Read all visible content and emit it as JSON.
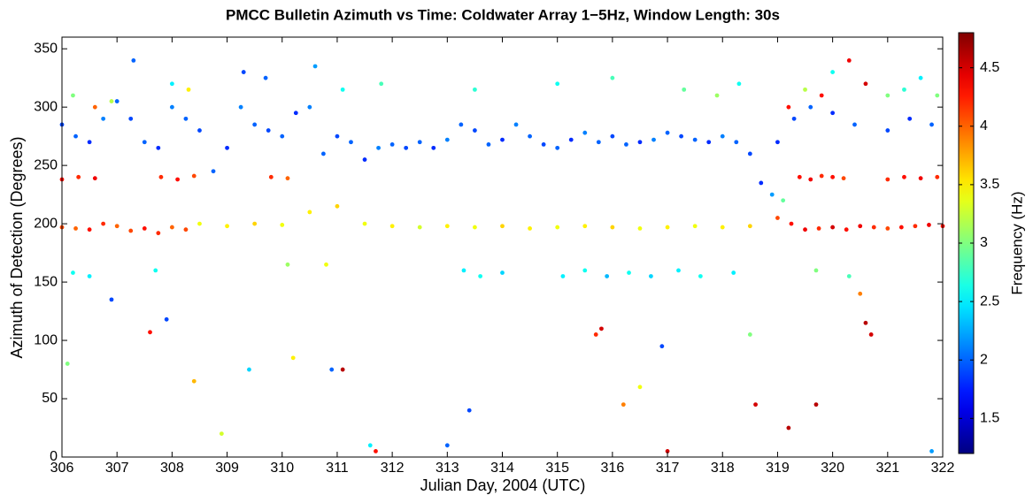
{
  "chart_data": {
    "type": "scatter",
    "title": "PMCC Bulletin Azimuth vs Time: Coldwater Array 1−5Hz, Window Length: 30s",
    "x_label": "Julian Day, 2004 (UTC)",
    "y_label": "Azimuth of Detection (Degrees)",
    "colorbar_label": "Frequency (Hz)",
    "colormap": "jet",
    "xlim": [
      306,
      322
    ],
    "xticks": [
      306,
      307,
      308,
      309,
      310,
      311,
      312,
      313,
      314,
      315,
      316,
      317,
      318,
      319,
      320,
      321,
      322
    ],
    "ylim": [
      0,
      360
    ],
    "yticks": [
      0,
      50,
      100,
      150,
      200,
      250,
      300,
      350
    ],
    "clim": [
      1.2,
      4.8
    ],
    "cticks": [
      1.5,
      2,
      2.5,
      3,
      3.5,
      4,
      4.5
    ],
    "x": [
      306,
      306.25,
      306.5,
      306.75,
      307,
      307.25,
      307.5,
      307.75,
      308,
      308.25,
      308.5,
      308.75,
      309,
      309.25,
      309.5,
      309.75,
      310,
      310.25,
      310.5,
      310.75,
      311,
      311.25,
      311.5,
      311.75,
      312,
      312.25,
      312.5,
      312.75,
      313,
      313.25,
      313.5,
      313.75,
      314,
      314.25,
      314.5,
      314.75,
      315,
      315.25,
      315.5,
      315.75,
      316,
      316.25,
      316.5,
      316.75,
      317,
      317.25,
      317.5,
      317.75,
      318,
      318.25,
      318.5,
      308.5,
      309,
      309.5,
      310,
      310.5,
      311,
      311.5,
      312,
      312.5,
      313,
      313.5,
      314,
      314.5,
      315,
      315.5,
      316,
      316.5,
      317,
      317.5,
      318,
      318.5,
      306,
      306.25,
      306.5,
      306.75,
      307,
      307.25,
      307.5,
      307.75,
      308,
      308.25,
      319,
      319.25,
      319.5,
      319.75,
      320,
      320.25,
      320.5,
      320.75,
      321,
      321.25,
      321.5,
      321.75,
      322,
      306,
      306.3,
      306.6,
      307.8,
      308.1,
      308.4,
      309.8,
      310.1,
      319.4,
      319.6,
      319.8,
      320,
      320.2,
      321,
      321.3,
      321.6,
      321.9,
      306.2,
      306.6,
      306.9,
      307.3,
      308,
      308.3,
      309.3,
      309.7,
      310.6,
      311.1,
      311.8,
      313.5,
      315,
      316,
      317.3,
      317.9,
      318.3,
      319.2,
      319.5,
      319.8,
      320,
      320.3,
      320.6,
      321,
      321.3,
      321.6,
      321.9,
      319,
      319.3,
      319.6,
      320,
      320.4,
      321,
      321.4,
      321.8,
      318.7,
      318.9,
      319.1,
      306.2,
      306.5,
      307.7,
      313.3,
      313.6,
      314,
      315.1,
      315.5,
      315.9,
      316.3,
      316.7,
      317.2,
      317.6,
      318.2,
      319.7,
      320.3,
      306.1,
      306.9,
      307.6,
      307.9,
      308.4,
      308.9,
      309.4,
      310.2,
      310.9,
      311.1,
      311.6,
      311.7,
      313,
      313.4,
      315.7,
      315.8,
      316.2,
      316.5,
      316.9,
      317,
      318.5,
      318.6,
      319.2,
      319.7,
      320.6,
      320.7,
      320.5,
      321.8,
      310.1,
      310.8
    ],
    "values": [
      285,
      275,
      270,
      290,
      305,
      290,
      270,
      265,
      300,
      290,
      280,
      245,
      265,
      300,
      285,
      280,
      275,
      295,
      300,
      260,
      275,
      270,
      255,
      265,
      268,
      265,
      270,
      265,
      272,
      285,
      280,
      268,
      272,
      285,
      275,
      268,
      265,
      272,
      278,
      270,
      275,
      268,
      270,
      272,
      278,
      275,
      272,
      270,
      275,
      270,
      260,
      200,
      198,
      200,
      199,
      210,
      215,
      200,
      198,
      197,
      198,
      197,
      198,
      196,
      197,
      198,
      197,
      196,
      197,
      198,
      197,
      198,
      197,
      196,
      195,
      200,
      198,
      194,
      196,
      192,
      197,
      195,
      205,
      200,
      195,
      196,
      197,
      195,
      198,
      197,
      196,
      197,
      198,
      199,
      198,
      238,
      240,
      239,
      240,
      238,
      241,
      240,
      239,
      240,
      238,
      241,
      240,
      239,
      238,
      240,
      239,
      240,
      310,
      300,
      305,
      340,
      320,
      315,
      330,
      325,
      335,
      315,
      320,
      315,
      320,
      325,
      315,
      310,
      320,
      300,
      315,
      310,
      330,
      340,
      320,
      310,
      315,
      325,
      310,
      270,
      290,
      300,
      295,
      285,
      280,
      290,
      285,
      235,
      225,
      220,
      158,
      155,
      160,
      160,
      155,
      158,
      155,
      160,
      155,
      158,
      155,
      160,
      155,
      158,
      160,
      155,
      80,
      135,
      107,
      118,
      65,
      20,
      75,
      85,
      75,
      75,
      10,
      5,
      10,
      40,
      105,
      110,
      45,
      60,
      95,
      5,
      105,
      45,
      25,
      45,
      115,
      105,
      140,
      5,
      165,
      165
    ],
    "color_values": [
      1.9,
      2.0,
      1.8,
      2.1,
      2.0,
      1.9,
      2.0,
      1.8,
      2.1,
      2.0,
      1.9,
      2.0,
      1.8,
      2.1,
      2.0,
      1.9,
      2.0,
      1.8,
      2.1,
      2.0,
      1.9,
      2.0,
      1.8,
      2.1,
      2.0,
      1.9,
      2.0,
      1.8,
      2.1,
      2.0,
      1.9,
      2.0,
      1.8,
      2.1,
      2.0,
      1.9,
      2.0,
      1.8,
      2.1,
      2.0,
      1.9,
      2.0,
      1.8,
      2.1,
      2.0,
      1.9,
      2.0,
      1.8,
      2.1,
      2.0,
      1.9,
      3.4,
      3.5,
      3.6,
      3.4,
      3.5,
      3.6,
      3.4,
      3.5,
      3.3,
      3.5,
      3.4,
      3.6,
      3.5,
      3.4,
      3.5,
      3.6,
      3.4,
      3.5,
      3.4,
      3.5,
      3.6,
      4.1,
      4.0,
      4.3,
      4.2,
      4.0,
      4.1,
      4.3,
      4.2,
      4.0,
      4.1,
      4.1,
      4.3,
      4.4,
      4.2,
      4.5,
      4.3,
      4.4,
      4.2,
      4.1,
      4.3,
      4.2,
      4.4,
      4.3,
      4.3,
      4.2,
      4.4,
      4.2,
      4.3,
      4.1,
      4.2,
      4.0,
      4.3,
      4.4,
      4.2,
      4.3,
      4.1,
      4.2,
      4.3,
      4.4,
      4.2,
      3.0,
      4.0,
      3.2,
      2.0,
      2.5,
      3.5,
      1.9,
      2.0,
      2.2,
      2.6,
      2.8,
      2.7,
      2.6,
      2.8,
      2.9,
      3.1,
      2.6,
      4.3,
      3.2,
      4.3,
      2.6,
      4.4,
      4.5,
      3.0,
      2.7,
      2.5,
      3.0,
      1.8,
      1.9,
      2.0,
      1.8,
      2.0,
      1.9,
      1.8,
      2.0,
      1.8,
      2.2,
      2.9,
      2.6,
      2.5,
      2.6,
      2.5,
      2.6,
      2.4,
      2.5,
      2.6,
      2.3,
      2.6,
      2.4,
      2.5,
      2.6,
      2.5,
      3.0,
      2.8,
      3.0,
      1.9,
      4.3,
      1.9,
      3.7,
      3.3,
      2.4,
      3.5,
      2.0,
      4.6,
      2.5,
      4.3,
      2.0,
      1.9,
      4.2,
      4.5,
      3.9,
      3.4,
      1.9,
      4.5,
      3.0,
      4.5,
      4.6,
      4.6,
      4.6,
      4.5,
      3.9,
      2.2,
      3.1,
      3.4
    ]
  }
}
